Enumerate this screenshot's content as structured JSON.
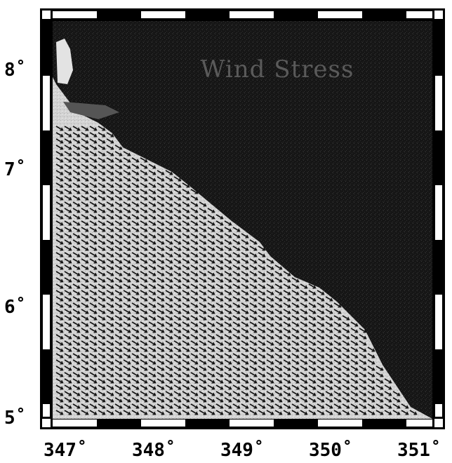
{
  "map": {
    "title": "Wind Stress",
    "x_ticks": [
      "347˚",
      "348˚",
      "349˚",
      "350˚",
      "351˚"
    ],
    "y_ticks": [
      "8˚",
      "7˚",
      "6˚",
      "5˚"
    ],
    "colors": {
      "ocean": "#161616",
      "land": "#d9d9d9",
      "frame": "#000000",
      "frame_light": "#ffffff",
      "vectors": "#111111"
    }
  }
}
